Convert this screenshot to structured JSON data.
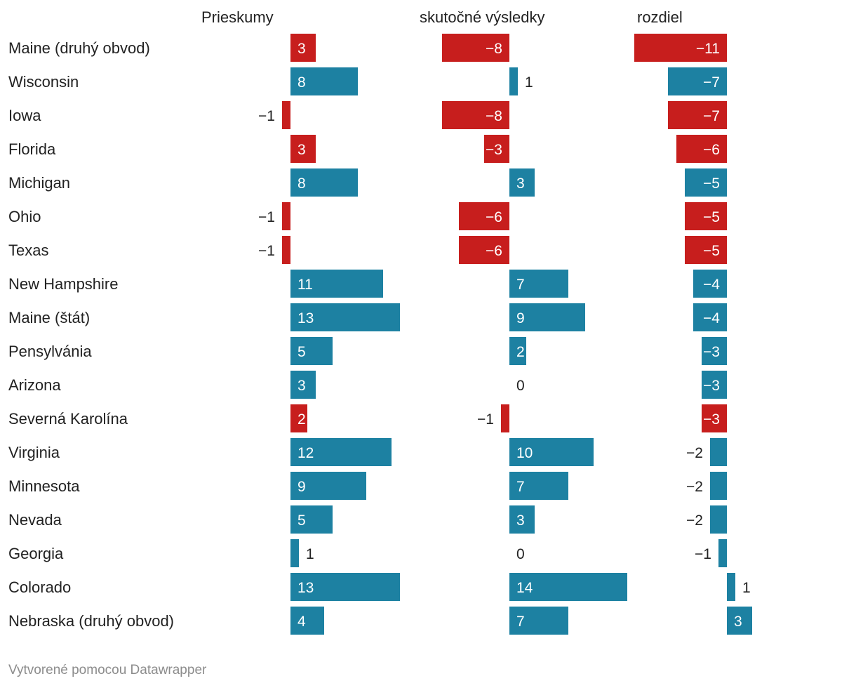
{
  "chart_data": {
    "type": "bar",
    "title": "",
    "rows": [
      "Maine (druhý obvod)",
      "Wisconsin",
      "Iowa",
      "Florida",
      "Michigan",
      "Ohio",
      "Texas",
      "New Hampshire",
      "Maine (štát)",
      "Pensylvánia",
      "Arizona",
      "Severná Karolína",
      "Virginia",
      "Minnesota",
      "Nevada",
      "Georgia",
      "Colorado",
      "Nebraska (druhý obvod)"
    ],
    "series": [
      {
        "name": "Prieskumy",
        "values": [
          3,
          8,
          -1,
          3,
          8,
          -1,
          -1,
          11,
          13,
          5,
          3,
          2,
          12,
          9,
          5,
          1,
          13,
          4
        ],
        "colors": [
          "red",
          "blue",
          "red",
          "red",
          "blue",
          "red",
          "red",
          "blue",
          "blue",
          "blue",
          "blue",
          "red",
          "blue",
          "blue",
          "blue",
          "blue",
          "blue",
          "blue"
        ]
      },
      {
        "name": "skutočné výsledky",
        "values": [
          -8,
          1,
          -8,
          -3,
          3,
          -6,
          -6,
          7,
          9,
          2,
          0,
          -1,
          10,
          7,
          3,
          0,
          14,
          7
        ],
        "colors": [
          "red",
          "blue",
          "red",
          "red",
          "blue",
          "red",
          "red",
          "blue",
          "blue",
          "blue",
          "blue",
          "red",
          "blue",
          "blue",
          "blue",
          "blue",
          "blue",
          "blue"
        ]
      },
      {
        "name": "rozdiel",
        "values": [
          -11,
          -7,
          -7,
          -6,
          -5,
          -5,
          -5,
          -4,
          -4,
          -3,
          -3,
          -3,
          -2,
          -2,
          -2,
          -1,
          1,
          3
        ],
        "colors": [
          "red",
          "blue",
          "red",
          "red",
          "blue",
          "red",
          "red",
          "blue",
          "blue",
          "blue",
          "blue",
          "red",
          "blue",
          "blue",
          "blue",
          "blue",
          "blue",
          "blue"
        ]
      }
    ],
    "palette": {
      "red": "#c71e1d",
      "blue": "#1d81a2"
    },
    "value_prefix_negative": "−"
  },
  "footer": {
    "credit": "Vytvorené pomocou Datawrapper"
  }
}
